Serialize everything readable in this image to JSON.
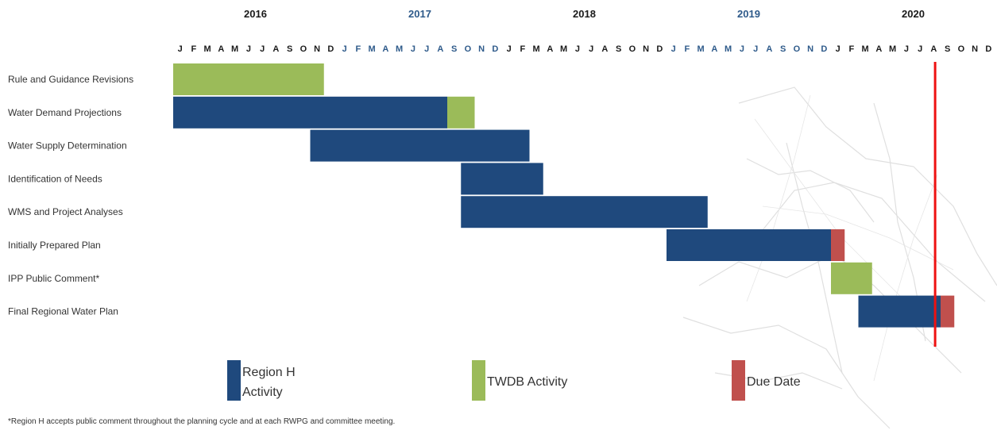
{
  "colors": {
    "region_activity": "#1f497d",
    "twdb_activity": "#9bbb59",
    "due_date": "#c0504d",
    "current_marker": "#ee1111",
    "year_dark": "#1a1a1a",
    "year_blue": "#2e5a8a"
  },
  "chart_data": {
    "type": "gantt",
    "years": [
      "2016",
      "2017",
      "2018",
      "2019",
      "2020"
    ],
    "months": [
      "J",
      "F",
      "M",
      "A",
      "M",
      "J",
      "J",
      "A",
      "S",
      "O",
      "N",
      "D"
    ],
    "tasks": [
      "Rule and Guidance Revisions",
      "Water Demand Projections",
      "Water Supply Determination",
      "Identification of Needs",
      "WMS and Project Analyses",
      "Initially Prepared Plan",
      "IPP Public Comment*",
      "Final Regional Water Plan"
    ],
    "bars": [
      {
        "task": 0,
        "category": "twdb_activity",
        "start": "2016-01",
        "end": "2016-11"
      },
      {
        "task": 1,
        "category": "region_activity",
        "start": "2016-01",
        "end": "2017-08"
      },
      {
        "task": 1,
        "category": "twdb_activity",
        "start": "2017-09",
        "end": "2017-10"
      },
      {
        "task": 2,
        "category": "region_activity",
        "start": "2016-11",
        "end": "2018-02"
      },
      {
        "task": 3,
        "category": "region_activity",
        "start": "2017-10",
        "end": "2018-03"
      },
      {
        "task": 4,
        "category": "region_activity",
        "start": "2017-10",
        "end": "2019-03"
      },
      {
        "task": 5,
        "category": "region_activity",
        "start": "2019-01",
        "end": "2019-12"
      },
      {
        "task": 5,
        "category": "due_date",
        "start": "2020-01",
        "end": "2020-01"
      },
      {
        "task": 6,
        "category": "twdb_activity",
        "start": "2020-01",
        "end": "2020-03"
      },
      {
        "task": 7,
        "category": "region_activity",
        "start": "2020-03",
        "end": "2020-08"
      },
      {
        "task": 7,
        "category": "due_date",
        "start": "2020-09",
        "end": "2020-09"
      }
    ],
    "current_date_marker": "2020-08",
    "legend": [
      {
        "category": "region_activity",
        "label": "Region H Activity"
      },
      {
        "category": "twdb_activity",
        "label": "TWDB Activity"
      },
      {
        "category": "due_date",
        "label": "Due Date"
      }
    ]
  },
  "footnote": "*Region H accepts public comment throughout the planning cycle and at each RWPG and committee meeting."
}
